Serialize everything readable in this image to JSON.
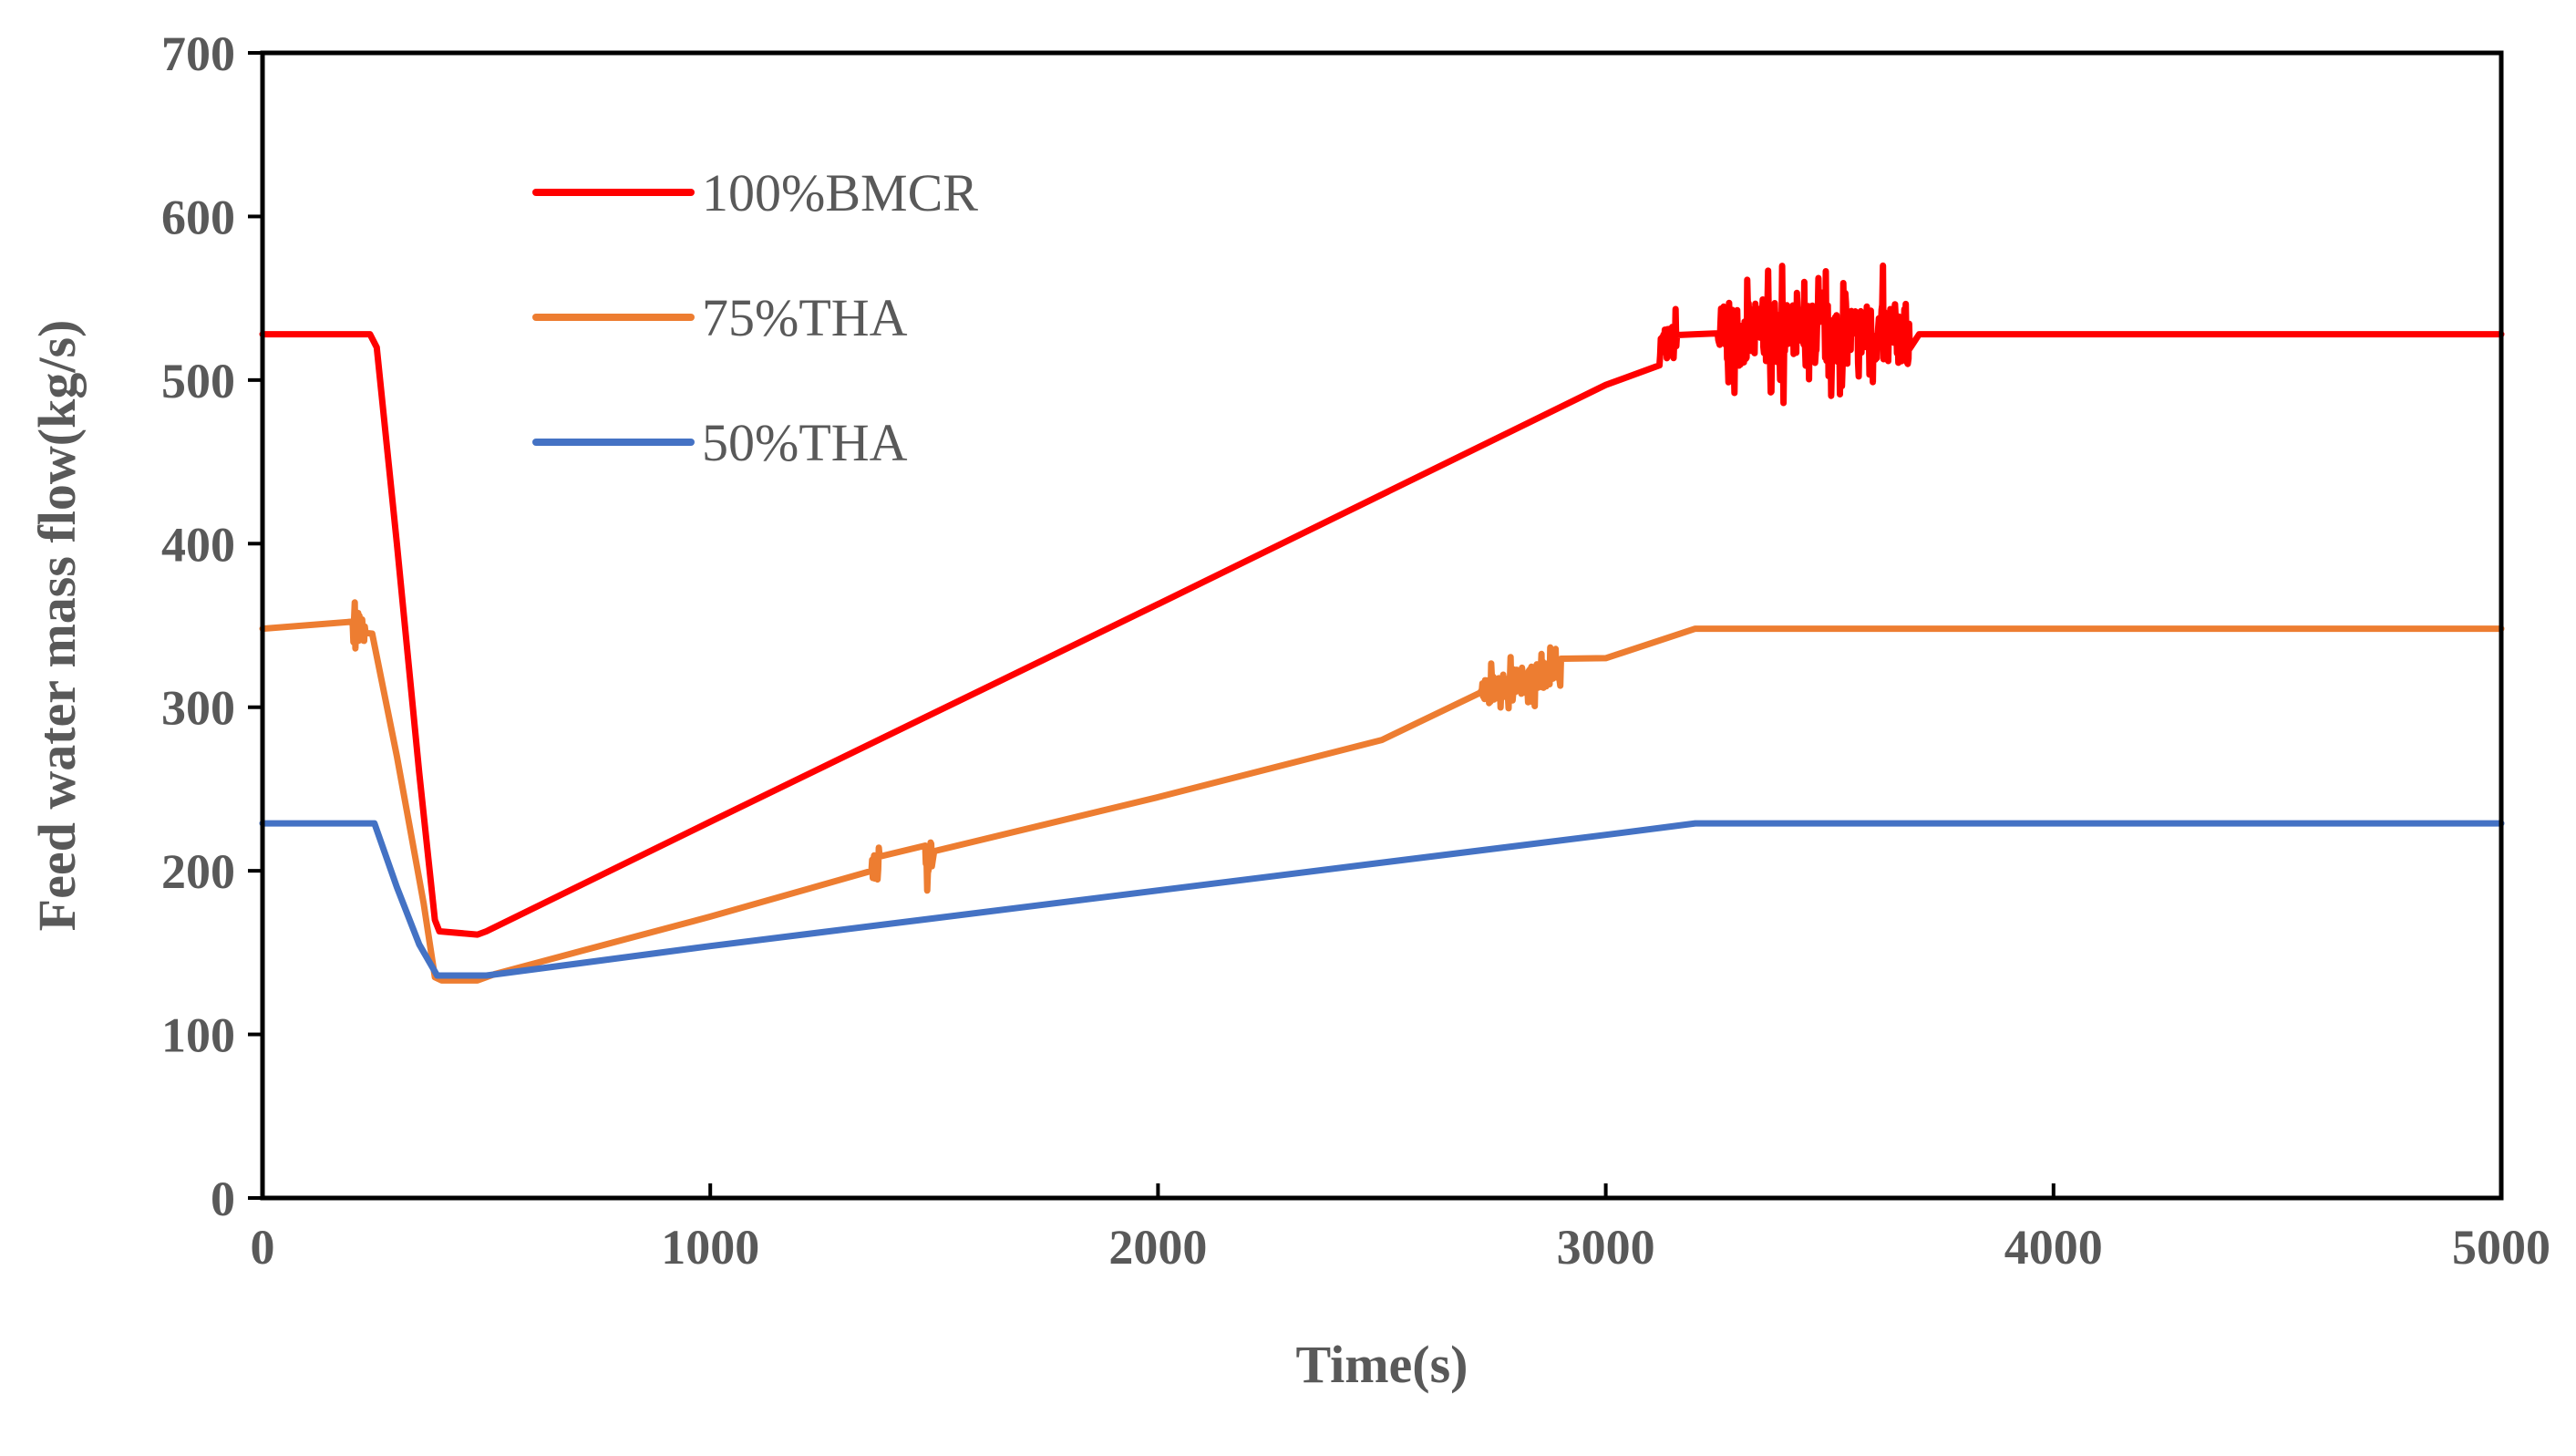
{
  "chart_data": {
    "type": "line",
    "title": "",
    "xlabel": "Time(s)",
    "ylabel": "Feed water mass flow(kg/s)",
    "xlim": [
      0,
      5000
    ],
    "ylim": [
      0,
      700
    ],
    "xticks": [
      0,
      1000,
      2000,
      3000,
      4000,
      5000
    ],
    "yticks": [
      0,
      100,
      200,
      300,
      400,
      500,
      600,
      700
    ],
    "xtick_labels": [
      "0",
      "1000",
      "2000",
      "3000",
      "4000",
      "5000"
    ],
    "ytick_labels": [
      "0",
      "100",
      "200",
      "300",
      "400",
      "500",
      "600",
      "700"
    ],
    "grid": false,
    "legend_position": "top-left",
    "series": [
      {
        "name": "100%BMCR",
        "color": "#ff0000",
        "points": [
          [
            0,
            528
          ],
          [
            240,
            528
          ],
          [
            255,
            520
          ],
          [
            300,
            400
          ],
          [
            350,
            260
          ],
          [
            385,
            170
          ],
          [
            395,
            163
          ],
          [
            480,
            161
          ],
          [
            500,
            163
          ],
          [
            1000,
            230
          ],
          [
            2000,
            363
          ],
          [
            3000,
            497
          ],
          [
            3120,
            520
          ],
          [
            3200,
            528
          ],
          [
            3700,
            528
          ],
          [
            5000,
            528
          ]
        ],
        "noise": [
          {
            "from": 3120,
            "to": 3160,
            "amplitude": 20
          },
          {
            "from": 3250,
            "to": 3680,
            "amplitude": 35
          }
        ]
      },
      {
        "name": "75%THA",
        "color": "#ed7d31",
        "points": [
          [
            0,
            348
          ],
          [
            200,
            348
          ],
          [
            245,
            345
          ],
          [
            300,
            270
          ],
          [
            360,
            180
          ],
          [
            385,
            135
          ],
          [
            400,
            133
          ],
          [
            480,
            133
          ],
          [
            520,
            137
          ],
          [
            1000,
            172
          ],
          [
            1500,
            212
          ],
          [
            2000,
            245
          ],
          [
            2500,
            280
          ],
          [
            2750,
            312
          ],
          [
            3000,
            330
          ],
          [
            3200,
            348
          ],
          [
            5000,
            348
          ]
        ],
        "noise": [
          {
            "from": 200,
            "to": 230,
            "amplitude": 15
          },
          {
            "from": 1360,
            "to": 1380,
            "amplitude": 15
          },
          {
            "from": 1480,
            "to": 1495,
            "amplitude": 25
          },
          {
            "from": 2720,
            "to": 2900,
            "amplitude": 15
          }
        ]
      },
      {
        "name": "50%THA",
        "color": "#4472c4",
        "points": [
          [
            0,
            229
          ],
          [
            250,
            229
          ],
          [
            300,
            190
          ],
          [
            350,
            155
          ],
          [
            390,
            136
          ],
          [
            500,
            136
          ],
          [
            1000,
            154
          ],
          [
            2000,
            188
          ],
          [
            3000,
            222
          ],
          [
            3200,
            229
          ],
          [
            5000,
            229
          ]
        ],
        "noise": []
      }
    ]
  }
}
